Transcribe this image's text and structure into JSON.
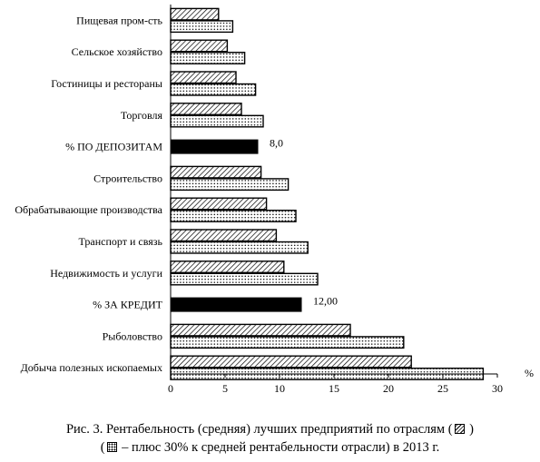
{
  "chart_data": {
    "type": "bar",
    "orientation": "horizontal",
    "categories": [
      "Пищевая пром-сть",
      "Сельское хозяйство",
      "Гостиницы и рестораны",
      "Торговля",
      "% ПО ДЕПОЗИТАМ",
      "Строительство",
      "Обрабатывающие производства",
      "Транспорт и связь",
      "Недвижимость и услуги",
      "% ЗА КРЕДИТ",
      "Рыболовство",
      "Добыча полезных ископаемых"
    ],
    "series": [
      {
        "pattern": "hatched",
        "values": [
          4.4,
          5.2,
          6.0,
          6.5,
          null,
          8.3,
          8.8,
          9.7,
          10.4,
          null,
          16.5,
          22.1
        ]
      },
      {
        "pattern": "dotted",
        "values": [
          5.7,
          6.8,
          7.8,
          8.5,
          null,
          10.8,
          11.5,
          12.6,
          13.5,
          null,
          21.4,
          28.7
        ]
      },
      {
        "pattern": "solid",
        "values": [
          null,
          null,
          null,
          null,
          8.0,
          null,
          null,
          null,
          null,
          12.0,
          null,
          null
        ]
      }
    ],
    "data_labels": {
      "4": "8,0",
      "9": "12,00"
    },
    "xlim": [
      0,
      30
    ],
    "xticks": [
      "0",
      "5",
      "10",
      "15",
      "20",
      "25",
      "30"
    ],
    "xunit": "%",
    "grid": false
  },
  "caption": {
    "line1_text": "Рис. 3. Рентабельность (средняя) лучших предприятий по отраслям (",
    "line1_end": " )",
    "line2_open": "(",
    "line2_text": " – плюс 30% к средней рентабельности отрасли) в 2013 г."
  }
}
